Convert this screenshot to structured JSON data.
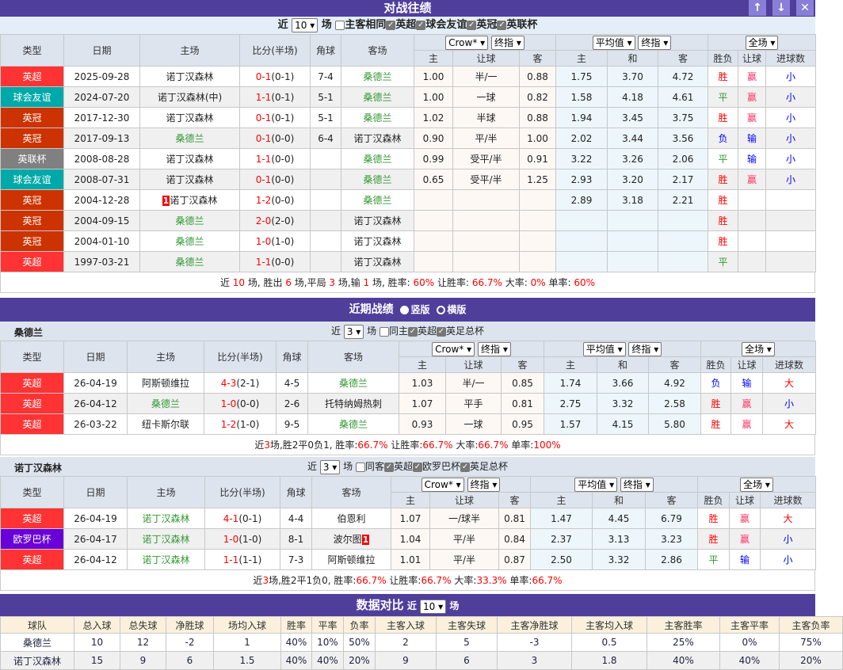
{
  "colors": {
    "header_bg": "#4f3f9b",
    "win": "#ff0000",
    "draw": "#339933",
    "loss": "#0000ff"
  },
  "type_colors": {
    "英超": "#ff3333",
    "球会友谊": "#00a9a9",
    "英冠": "#cc3300",
    "英联杯": "#808080",
    "欧罗巴杯": "#6a00d8"
  },
  "h2h": {
    "title": "对战往绩",
    "buttons": [
      "↑",
      "↓",
      "✕"
    ],
    "filter": {
      "prefix": "近",
      "count": "10",
      "suffix": "场",
      "same_label": "主客相同",
      "leagues": [
        "英超",
        "球会友谊",
        "英冠",
        "英联杯"
      ]
    },
    "dropdowns": {
      "company": "Crow*",
      "odds_type": "终指",
      "europe": "平均值",
      "europe_type": "终指",
      "period": "全场"
    },
    "headers": {
      "type": "类型",
      "date": "日期",
      "home": "主场",
      "score": "比分(半场)",
      "corner": "角球",
      "away": "客场",
      "ah": [
        "主",
        "让球",
        "客"
      ],
      "eu": [
        "主",
        "和",
        "客"
      ],
      "res": [
        "胜负",
        "让球",
        "进球数"
      ]
    },
    "rows": [
      {
        "type": "英超",
        "date": "2025-09-28",
        "home": "诺丁汉森林",
        "score": "0-1",
        "half": "(0-1)",
        "corner": "7-4",
        "away": "桑德兰",
        "hl": "away",
        "ah": [
          "1.00",
          "半/一",
          "0.88"
        ],
        "eu": [
          "1.75",
          "3.70",
          "4.72"
        ],
        "res": [
          "胜",
          "赢",
          "小"
        ]
      },
      {
        "type": "球会友谊",
        "date": "2024-07-20",
        "home": "诺丁汉森林(中)",
        "score": "1-1",
        "half": "(0-1)",
        "corner": "5-1",
        "away": "桑德兰",
        "hl": "away",
        "ah": [
          "1.00",
          "一球",
          "0.82"
        ],
        "eu": [
          "1.58",
          "4.18",
          "4.61"
        ],
        "res": [
          "平",
          "赢",
          "小"
        ]
      },
      {
        "type": "英冠",
        "date": "2017-12-30",
        "home": "诺丁汉森林",
        "score": "0-1",
        "half": "(0-1)",
        "corner": "5-1",
        "away": "桑德兰",
        "hl": "away",
        "ah": [
          "1.02",
          "半球",
          "0.88"
        ],
        "eu": [
          "1.94",
          "3.45",
          "3.75"
        ],
        "res": [
          "胜",
          "赢",
          "小"
        ]
      },
      {
        "type": "英冠",
        "date": "2017-09-13",
        "home": "桑德兰",
        "score": "0-1",
        "half": "(0-0)",
        "corner": "6-4",
        "away": "诺丁汉森林",
        "hl": "home",
        "ah": [
          "0.90",
          "平/半",
          "1.00"
        ],
        "eu": [
          "2.02",
          "3.44",
          "3.56"
        ],
        "res": [
          "负",
          "输",
          "小"
        ]
      },
      {
        "type": "英联杯",
        "date": "2008-08-28",
        "home": "诺丁汉森林",
        "score": "1-1",
        "half": "(0-0)",
        "corner": "",
        "away": "桑德兰",
        "hl": "away",
        "ah": [
          "0.99",
          "受平/半",
          "0.91"
        ],
        "eu": [
          "3.22",
          "3.26",
          "2.06"
        ],
        "res": [
          "平",
          "输",
          "小"
        ]
      },
      {
        "type": "球会友谊",
        "date": "2008-07-31",
        "home": "诺丁汉森林",
        "score": "0-1",
        "half": "(0-0)",
        "corner": "",
        "away": "桑德兰",
        "hl": "away",
        "ah": [
          "0.65",
          "受平/半",
          "1.25"
        ],
        "eu": [
          "2.93",
          "3.20",
          "2.17"
        ],
        "res": [
          "胜",
          "赢",
          "小"
        ]
      },
      {
        "type": "英冠",
        "date": "2004-12-28",
        "home": "诺丁汉森林",
        "home_card": "1",
        "score": "1-2",
        "half": "(0-0)",
        "corner": "",
        "away": "桑德兰",
        "hl": "away",
        "ah": [
          "",
          "",
          ""
        ],
        "eu": [
          "2.89",
          "3.18",
          "2.21"
        ],
        "res": [
          "胜",
          "",
          ""
        ]
      },
      {
        "type": "英冠",
        "date": "2004-09-15",
        "home": "桑德兰",
        "score": "2-0",
        "half": "(2-0)",
        "corner": "",
        "away": "诺丁汉森林",
        "hl": "home",
        "ah": [
          "",
          "",
          ""
        ],
        "eu": [
          "",
          "",
          ""
        ],
        "res": [
          "胜",
          "",
          ""
        ]
      },
      {
        "type": "英冠",
        "date": "2004-01-10",
        "home": "桑德兰",
        "score": "1-0",
        "half": "(1-0)",
        "corner": "",
        "away": "诺丁汉森林",
        "hl": "home",
        "ah": [
          "",
          "",
          ""
        ],
        "eu": [
          "",
          "",
          ""
        ],
        "res": [
          "胜",
          "",
          ""
        ]
      },
      {
        "type": "英超",
        "date": "1997-03-21",
        "home": "桑德兰",
        "score": "1-1",
        "half": "(0-0)",
        "corner": "",
        "away": "诺丁汉森林",
        "hl": "home",
        "ah": [
          "",
          "",
          ""
        ],
        "eu": [
          "",
          "",
          ""
        ],
        "res": [
          "平",
          "",
          ""
        ]
      }
    ],
    "summary": [
      [
        "近 ",
        ""
      ],
      [
        "10",
        "r"
      ],
      [
        " 场, 胜出 ",
        ""
      ],
      [
        "6",
        "r"
      ],
      [
        " 场,平局 ",
        ""
      ],
      [
        "3",
        "r"
      ],
      [
        " 场,输 ",
        ""
      ],
      [
        "1",
        "r"
      ],
      [
        " 场, 胜率: ",
        ""
      ],
      [
        "60%",
        "r"
      ],
      [
        " 让胜率: ",
        ""
      ],
      [
        "66.7%",
        "r"
      ],
      [
        " 大率: ",
        ""
      ],
      [
        "0%",
        "r"
      ],
      [
        " 单率: ",
        ""
      ],
      [
        "60%",
        "r"
      ]
    ]
  },
  "recent": {
    "title": "近期战绩",
    "layout_options": [
      "竖版",
      "横版"
    ],
    "teams": [
      {
        "name": "桑德兰",
        "filter": {
          "prefix": "近",
          "count": "3",
          "suffix": "场",
          "same_label": "同主",
          "leagues": [
            "英超",
            "英足总杯"
          ]
        },
        "rows": [
          {
            "type": "英超",
            "date": "26-04-19",
            "home": "阿斯顿维拉",
            "score": "4-3",
            "half": "(2-1)",
            "corner": "4-5",
            "away": "桑德兰",
            "hl": "away",
            "ah": [
              "1.03",
              "半/一",
              "0.85"
            ],
            "eu": [
              "1.74",
              "3.66",
              "4.92"
            ],
            "res": [
              "负",
              "输",
              "大"
            ]
          },
          {
            "type": "英超",
            "date": "26-04-12",
            "home": "桑德兰",
            "score": "1-0",
            "half": "(0-0)",
            "corner": "2-6",
            "away": "托特纳姆热刺",
            "hl": "home",
            "ah": [
              "1.07",
              "平手",
              "0.81"
            ],
            "eu": [
              "2.75",
              "3.32",
              "2.58"
            ],
            "res": [
              "胜",
              "赢",
              "小"
            ]
          },
          {
            "type": "英超",
            "date": "26-03-22",
            "home": "纽卡斯尔联",
            "score": "1-2",
            "half": "(1-0)",
            "corner": "9-5",
            "away": "桑德兰",
            "hl": "away",
            "ah": [
              "0.93",
              "一球",
              "0.95"
            ],
            "eu": [
              "1.57",
              "4.15",
              "5.80"
            ],
            "res": [
              "胜",
              "赢",
              "大"
            ]
          }
        ],
        "summary": [
          [
            "近",
            ""
          ],
          [
            "3",
            "r"
          ],
          [
            "场,胜2平0负1, 胜率:",
            ""
          ],
          [
            "66.7%",
            "r"
          ],
          [
            " 让胜率:",
            ""
          ],
          [
            "66.7%",
            "r"
          ],
          [
            " 大率:",
            ""
          ],
          [
            "66.7%",
            "r"
          ],
          [
            " 单率:",
            ""
          ],
          [
            "100%",
            "r"
          ]
        ]
      },
      {
        "name": "诺丁汉森林",
        "filter": {
          "prefix": "近",
          "count": "3",
          "suffix": "场",
          "same_label": "同客",
          "leagues": [
            "英超",
            "欧罗巴杯",
            "英足总杯"
          ]
        },
        "rows": [
          {
            "type": "英超",
            "date": "26-04-19",
            "home": "诺丁汉森林",
            "score": "4-1",
            "half": "(0-1)",
            "corner": "4-4",
            "away": "伯恩利",
            "hl": "home",
            "ah": [
              "1.07",
              "一/球半",
              "0.81"
            ],
            "eu": [
              "1.47",
              "4.45",
              "6.79"
            ],
            "res": [
              "胜",
              "赢",
              "大"
            ]
          },
          {
            "type": "欧罗巴杯",
            "date": "26-04-17",
            "home": "诺丁汉森林",
            "score": "1-0",
            "half": "(1-0)",
            "corner": "8-1",
            "away": "波尔图",
            "away_card": "1",
            "hl": "home",
            "ah": [
              "1.04",
              "平/半",
              "0.84"
            ],
            "eu": [
              "2.37",
              "3.13",
              "3.23"
            ],
            "res": [
              "胜",
              "赢",
              "小"
            ]
          },
          {
            "type": "英超",
            "date": "26-04-12",
            "home": "诺丁汉森林",
            "score": "1-1",
            "half": "(1-1)",
            "corner": "7-3",
            "away": "阿斯顿维拉",
            "hl": "home",
            "ah": [
              "1.01",
              "平/半",
              "0.87"
            ],
            "eu": [
              "2.50",
              "3.32",
              "2.86"
            ],
            "res": [
              "平",
              "输",
              "小"
            ]
          }
        ],
        "summary": [
          [
            "近",
            ""
          ],
          [
            "3",
            "r"
          ],
          [
            "场,胜2平1负0, 胜率:",
            ""
          ],
          [
            "66.7%",
            "r"
          ],
          [
            " 让胜率:",
            ""
          ],
          [
            "66.7%",
            "r"
          ],
          [
            " 大率:",
            ""
          ],
          [
            "33.3%",
            "r"
          ],
          [
            " 单率:",
            ""
          ],
          [
            "66.7%",
            "r"
          ]
        ]
      }
    ]
  },
  "stats": {
    "title": "数据对比",
    "prefix": "近",
    "count": "10",
    "suffix": "场",
    "headers": [
      "球队",
      "总入球",
      "总失球",
      "净胜球",
      "场均入球",
      "胜率",
      "平率",
      "负率",
      "主客入球",
      "主客失球",
      "主客净胜球",
      "主客均入球",
      "主客胜率",
      "主客平率",
      "主客负率"
    ],
    "rows": [
      [
        "桑德兰",
        "10",
        "12",
        "-2",
        "1",
        "40%",
        "10%",
        "50%",
        "2",
        "5",
        "-3",
        "0.5",
        "25%",
        "0%",
        "75%"
      ],
      [
        "诺丁汉森林",
        "15",
        "9",
        "6",
        "1.5",
        "40%",
        "40%",
        "20%",
        "9",
        "6",
        "3",
        "1.8",
        "40%",
        "40%",
        "20%"
      ]
    ]
  }
}
